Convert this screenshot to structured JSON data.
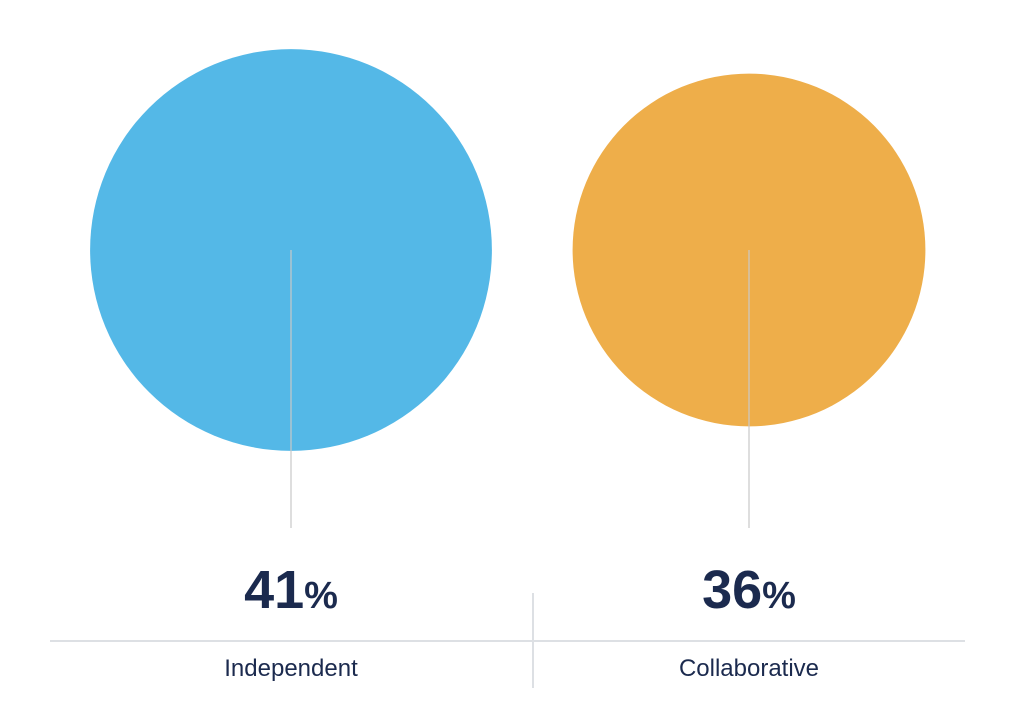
{
  "chart_data": {
    "type": "bubble",
    "categories": [
      "Independent",
      "Collaborative"
    ],
    "values": [
      41,
      36
    ],
    "value_labels": [
      "41%",
      "36%"
    ],
    "colors": [
      "#54b8e7",
      "#eeae4a"
    ]
  }
}
